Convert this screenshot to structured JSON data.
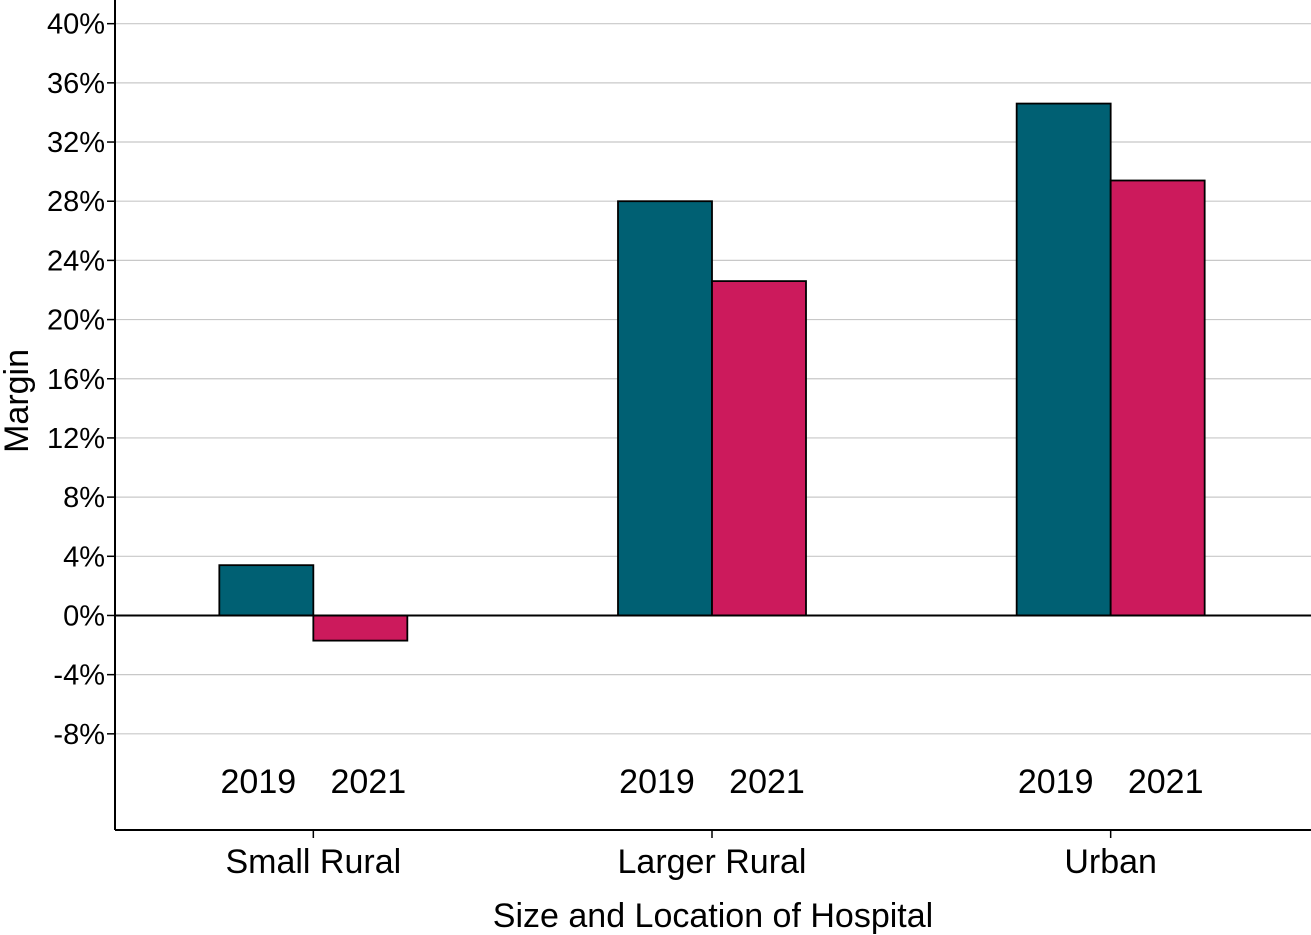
{
  "chart_data": {
    "type": "bar",
    "xlabel": "Size and Location of Hospital",
    "ylabel": "Margin",
    "categories": [
      "Small Rural",
      "Larger Rural",
      "Urban"
    ],
    "series": [
      {
        "year_label": "2019",
        "color": "#006073",
        "values": [
          3.4,
          28.0,
          34.6
        ]
      },
      {
        "year_label": "2021",
        "color": "#cc1a5c",
        "values": [
          -1.7,
          22.6,
          29.4
        ]
      }
    ],
    "y_ticks": [
      {
        "value": 40,
        "label": "40%"
      },
      {
        "value": 36,
        "label": "36%"
      },
      {
        "value": 32,
        "label": "32%"
      },
      {
        "value": 28,
        "label": "28%"
      },
      {
        "value": 24,
        "label": "24%"
      },
      {
        "value": 20,
        "label": "20%"
      },
      {
        "value": 16,
        "label": "16%"
      },
      {
        "value": 12,
        "label": "12%"
      },
      {
        "value": 8,
        "label": "8%"
      },
      {
        "value": 4,
        "label": "4%"
      },
      {
        "value": 0,
        "label": "0%"
      },
      {
        "value": -4,
        "label": "-4%"
      },
      {
        "value": -8,
        "label": "-8%"
      }
    ],
    "ylim": [
      -14.5,
      41.6
    ],
    "grid": true,
    "legend": "none"
  }
}
